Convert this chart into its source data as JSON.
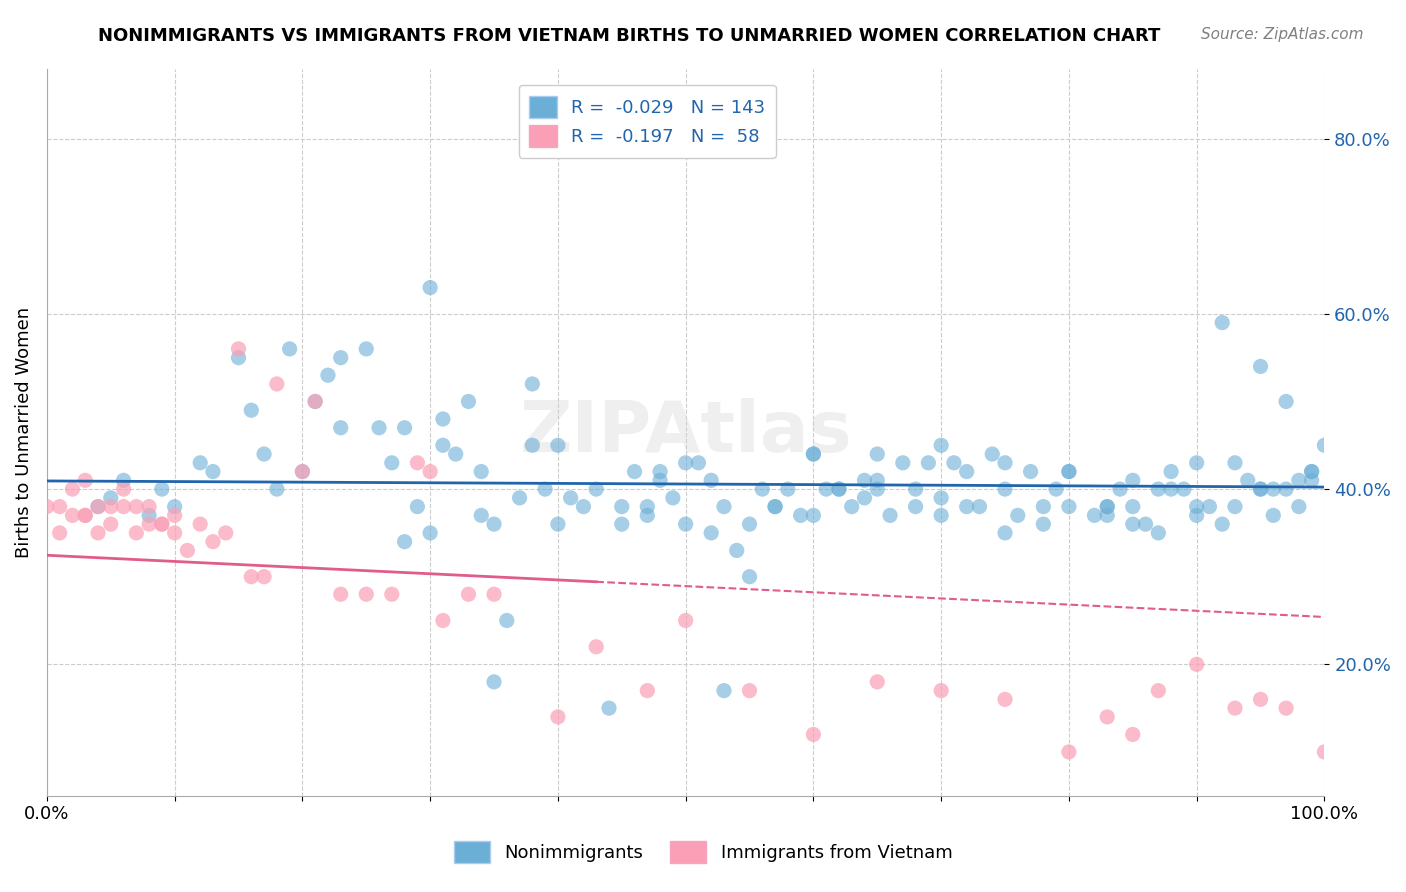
{
  "title": "NONIMMIGRANTS VS IMMIGRANTS FROM VIETNAM BIRTHS TO UNMARRIED WOMEN CORRELATION CHART",
  "source": "Source: ZipAtlas.com",
  "ylabel": "Births to Unmarried Women",
  "xlim": [
    0,
    1.0
  ],
  "ylim": [
    0.05,
    0.88
  ],
  "yticks": [
    0.2,
    0.4,
    0.6,
    0.8
  ],
  "ytick_labels": [
    "20.0%",
    "40.0%",
    "60.0%",
    "80.0%"
  ],
  "xticks": [
    0.0,
    0.1,
    0.2,
    0.3,
    0.4,
    0.5,
    0.6,
    0.7,
    0.8,
    0.9,
    1.0
  ],
  "xtick_labels": [
    "0.0%",
    "",
    "",
    "",
    "",
    "",
    "",
    "",
    "",
    "",
    "100.0%"
  ],
  "blue_R": -0.029,
  "blue_N": 143,
  "pink_R": -0.197,
  "pink_N": 58,
  "blue_color": "#6baed6",
  "blue_line_color": "#2166ac",
  "pink_color": "#fa9fb5",
  "pink_line_color": "#e05c8a",
  "watermark": "ZIPAtlas",
  "legend_label_blue": "Nonimmigrants",
  "legend_label_pink": "Immigrants from Vietnam",
  "blue_scatter_x": [
    0.04,
    0.05,
    0.06,
    0.08,
    0.09,
    0.1,
    0.12,
    0.13,
    0.15,
    0.16,
    0.17,
    0.18,
    0.19,
    0.2,
    0.21,
    0.22,
    0.23,
    0.25,
    0.26,
    0.27,
    0.28,
    0.29,
    0.3,
    0.31,
    0.32,
    0.33,
    0.34,
    0.35,
    0.37,
    0.38,
    0.39,
    0.4,
    0.41,
    0.42,
    0.43,
    0.45,
    0.46,
    0.47,
    0.48,
    0.49,
    0.5,
    0.51,
    0.52,
    0.53,
    0.54,
    0.55,
    0.56,
    0.57,
    0.58,
    0.59,
    0.6,
    0.61,
    0.62,
    0.63,
    0.64,
    0.65,
    0.66,
    0.67,
    0.68,
    0.69,
    0.7,
    0.71,
    0.72,
    0.73,
    0.74,
    0.75,
    0.76,
    0.77,
    0.78,
    0.79,
    0.8,
    0.82,
    0.83,
    0.84,
    0.85,
    0.86,
    0.87,
    0.88,
    0.89,
    0.9,
    0.91,
    0.92,
    0.93,
    0.94,
    0.95,
    0.96,
    0.97,
    0.98,
    0.99,
    1.0,
    0.35,
    0.36,
    0.44,
    0.53,
    0.23,
    0.28,
    0.3,
    0.31,
    0.34,
    0.38,
    0.4,
    0.45,
    0.47,
    0.48,
    0.5,
    0.52,
    0.55,
    0.57,
    0.6,
    0.62,
    0.64,
    0.65,
    0.68,
    0.7,
    0.72,
    0.75,
    0.78,
    0.8,
    0.83,
    0.85,
    0.87,
    0.9,
    0.92,
    0.95,
    0.97,
    0.99,
    0.6,
    0.65,
    0.7,
    0.75,
    0.8,
    0.85,
    0.9,
    0.95,
    0.98,
    0.99,
    0.96,
    0.93,
    0.88,
    0.83,
    0.78,
    0.73,
    0.68,
    0.63
  ],
  "blue_scatter_y": [
    0.38,
    0.39,
    0.41,
    0.37,
    0.4,
    0.38,
    0.43,
    0.42,
    0.55,
    0.49,
    0.44,
    0.4,
    0.56,
    0.42,
    0.5,
    0.53,
    0.55,
    0.56,
    0.47,
    0.43,
    0.47,
    0.38,
    0.63,
    0.48,
    0.44,
    0.5,
    0.42,
    0.36,
    0.39,
    0.52,
    0.4,
    0.45,
    0.39,
    0.38,
    0.4,
    0.36,
    0.42,
    0.37,
    0.41,
    0.39,
    0.36,
    0.43,
    0.35,
    0.38,
    0.33,
    0.3,
    0.4,
    0.38,
    0.4,
    0.37,
    0.44,
    0.4,
    0.4,
    0.38,
    0.41,
    0.41,
    0.37,
    0.43,
    0.4,
    0.43,
    0.39,
    0.43,
    0.42,
    0.38,
    0.44,
    0.4,
    0.37,
    0.42,
    0.38,
    0.4,
    0.42,
    0.37,
    0.37,
    0.4,
    0.38,
    0.36,
    0.35,
    0.42,
    0.4,
    0.37,
    0.38,
    0.36,
    0.43,
    0.41,
    0.4,
    0.37,
    0.4,
    0.38,
    0.41,
    0.45,
    0.18,
    0.25,
    0.15,
    0.17,
    0.47,
    0.34,
    0.35,
    0.45,
    0.37,
    0.45,
    0.36,
    0.38,
    0.38,
    0.42,
    0.43,
    0.41,
    0.36,
    0.38,
    0.37,
    0.4,
    0.39,
    0.4,
    0.38,
    0.37,
    0.38,
    0.35,
    0.36,
    0.38,
    0.38,
    0.36,
    0.4,
    0.38,
    0.59,
    0.54,
    0.5,
    0.42,
    0.44,
    0.44,
    0.45,
    0.43,
    0.42,
    0.41,
    0.43,
    0.4,
    0.41,
    0.42,
    0.4,
    0.38,
    0.4,
    0.38
  ],
  "pink_scatter_x": [
    0.0,
    0.01,
    0.01,
    0.02,
    0.02,
    0.03,
    0.03,
    0.03,
    0.04,
    0.04,
    0.05,
    0.05,
    0.06,
    0.06,
    0.07,
    0.07,
    0.08,
    0.08,
    0.09,
    0.09,
    0.1,
    0.1,
    0.11,
    0.12,
    0.13,
    0.14,
    0.15,
    0.16,
    0.17,
    0.18,
    0.2,
    0.21,
    0.23,
    0.25,
    0.27,
    0.29,
    0.3,
    0.31,
    0.33,
    0.35,
    0.4,
    0.43,
    0.47,
    0.5,
    0.55,
    0.6,
    0.65,
    0.7,
    0.75,
    0.8,
    0.83,
    0.85,
    0.87,
    0.9,
    0.93,
    0.95,
    0.97,
    1.0
  ],
  "pink_scatter_y": [
    0.38,
    0.38,
    0.35,
    0.4,
    0.37,
    0.37,
    0.37,
    0.41,
    0.35,
    0.38,
    0.38,
    0.36,
    0.38,
    0.4,
    0.35,
    0.38,
    0.36,
    0.38,
    0.36,
    0.36,
    0.37,
    0.35,
    0.33,
    0.36,
    0.34,
    0.35,
    0.56,
    0.3,
    0.3,
    0.52,
    0.42,
    0.5,
    0.28,
    0.28,
    0.28,
    0.43,
    0.42,
    0.25,
    0.28,
    0.28,
    0.14,
    0.22,
    0.17,
    0.25,
    0.17,
    0.12,
    0.18,
    0.17,
    0.16,
    0.1,
    0.14,
    0.12,
    0.17,
    0.2,
    0.15,
    0.16,
    0.15,
    0.1
  ]
}
